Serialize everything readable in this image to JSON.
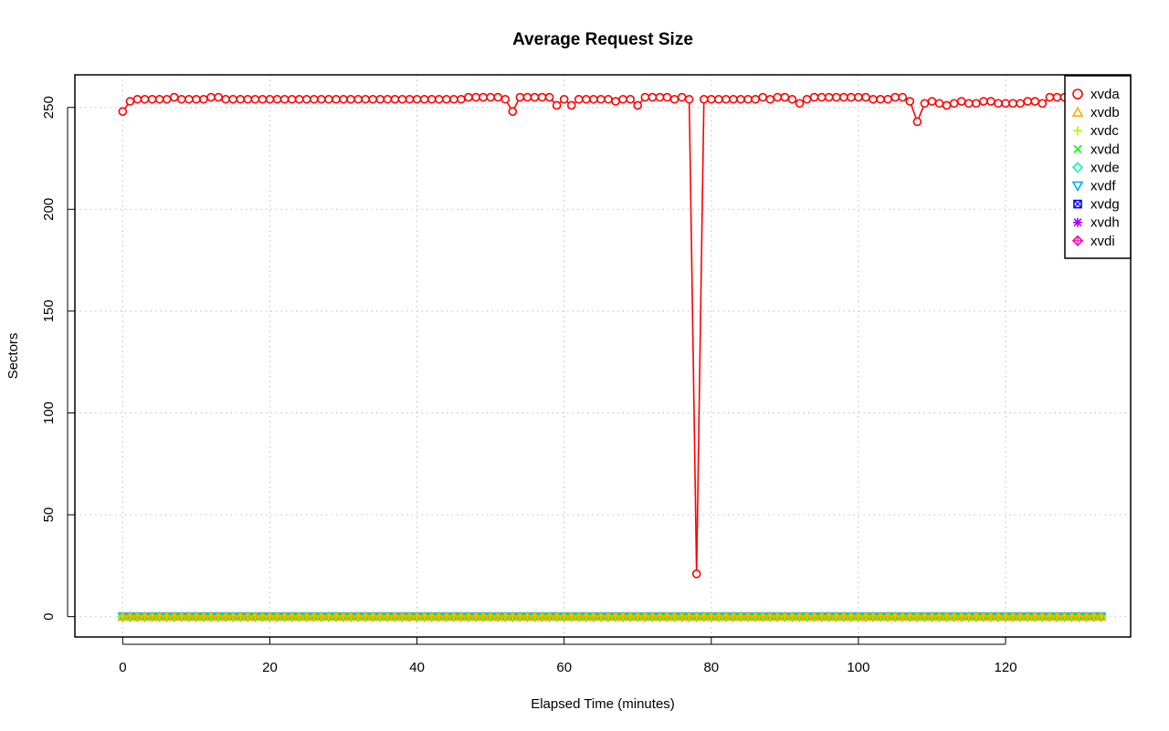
{
  "chart_data": {
    "type": "line",
    "title": "Average Request Size",
    "xlabel": "Elapsed Time (minutes)",
    "ylabel": "Sectors",
    "xlim": [
      -6.5,
      137
    ],
    "ylim": [
      -10,
      266
    ],
    "xticks": [
      0,
      20,
      40,
      60,
      80,
      100,
      120
    ],
    "yticks": [
      0,
      50,
      100,
      150,
      200,
      250
    ],
    "grid": true,
    "legend_position": "top-right",
    "xvda_values": [
      248,
      253,
      254,
      254,
      254,
      254,
      254,
      255,
      254,
      254,
      254,
      254,
      255,
      255,
      254,
      254,
      254,
      254,
      254,
      254,
      254,
      254,
      254,
      254,
      254,
      254,
      254,
      254,
      254,
      254,
      254,
      254,
      254,
      254,
      254,
      254,
      254,
      254,
      254,
      254,
      254,
      254,
      254,
      254,
      254,
      254,
      254,
      255,
      255,
      255,
      255,
      255,
      254,
      248,
      255,
      255,
      255,
      255,
      255,
      251,
      254,
      251,
      254,
      254,
      254,
      254,
      254,
      253,
      254,
      254,
      251,
      255,
      255,
      255,
      255,
      254,
      255,
      254,
      21,
      254,
      254,
      254,
      254,
      254,
      254,
      254,
      254,
      255,
      254,
      255,
      255,
      254,
      252,
      254,
      255,
      255,
      255,
      255,
      255,
      255,
      255,
      255,
      254,
      254,
      254,
      255,
      255,
      253,
      243,
      252,
      253,
      252,
      251,
      252,
      253,
      252,
      252,
      253,
      253,
      252,
      252,
      252,
      252,
      253,
      253,
      252,
      255,
      255,
      255,
      255,
      255,
      254,
      255,
      255,
      255
    ],
    "other_constant_value": 0,
    "x_start": 0,
    "x_end": 133,
    "series": [
      {
        "name": "xvda",
        "color": "#ff0000",
        "symbol": "circle"
      },
      {
        "name": "xvdb",
        "color": "#ffaa00",
        "symbol": "triangle-up"
      },
      {
        "name": "xvdc",
        "color": "#aaff00",
        "symbol": "plus"
      },
      {
        "name": "xvdd",
        "color": "#00ff00",
        "symbol": "cross"
      },
      {
        "name": "xvde",
        "color": "#00ffaa",
        "symbol": "diamond"
      },
      {
        "name": "xvdf",
        "color": "#00aaff",
        "symbol": "triangle-down"
      },
      {
        "name": "xvdg",
        "color": "#0000ff",
        "symbol": "square-cross"
      },
      {
        "name": "xvdh",
        "color": "#aa00ff",
        "symbol": "asterisk"
      },
      {
        "name": "xvdi",
        "color": "#ff00aa",
        "symbol": "diamond-plus"
      }
    ]
  }
}
